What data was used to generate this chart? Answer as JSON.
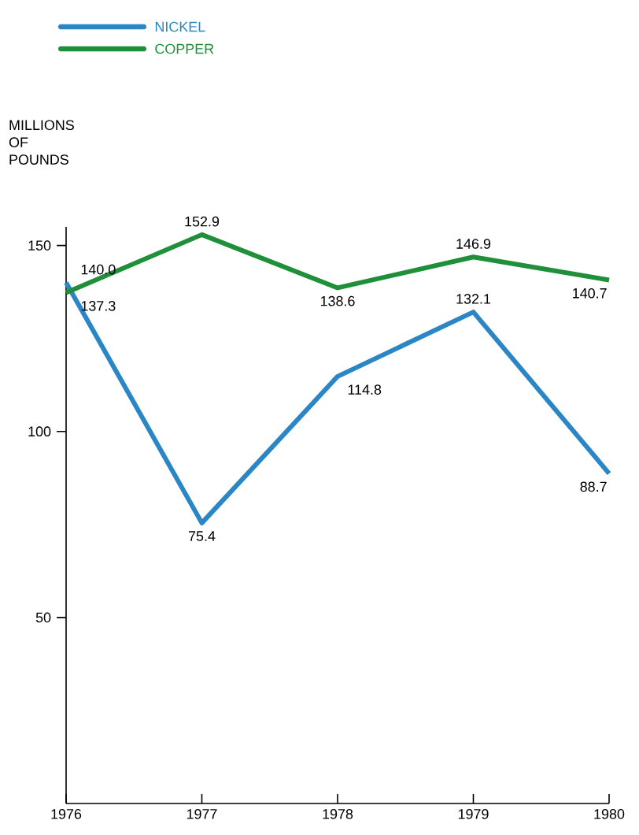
{
  "chart_data": {
    "type": "line",
    "ylabel": "MILLIONS OF POUNDS",
    "x": [
      1976,
      1977,
      1978,
      1979,
      1980
    ],
    "xlim": [
      1976,
      1980
    ],
    "xticks": [
      1976,
      1977,
      1978,
      1979,
      1980
    ],
    "ylim": [
      0,
      155
    ],
    "yticks": [
      50,
      100,
      150
    ],
    "legend": "top left",
    "grid": false,
    "marker": "none",
    "line_style": "solid",
    "series": [
      {
        "name": "NICKEL",
        "color": "#2a86c4",
        "values": [
          140.0,
          75.4,
          114.8,
          132.1,
          88.7
        ],
        "value_labels": [
          "140.0",
          "75.4",
          "114.8",
          "132.1",
          "88.7"
        ]
      },
      {
        "name": "COPPER",
        "color": "#1f8f3a",
        "values": [
          137.3,
          152.9,
          138.6,
          146.9,
          140.7
        ],
        "value_labels": [
          "137.3",
          "152.9",
          "138.6",
          "146.9",
          "140.7"
        ]
      }
    ]
  }
}
